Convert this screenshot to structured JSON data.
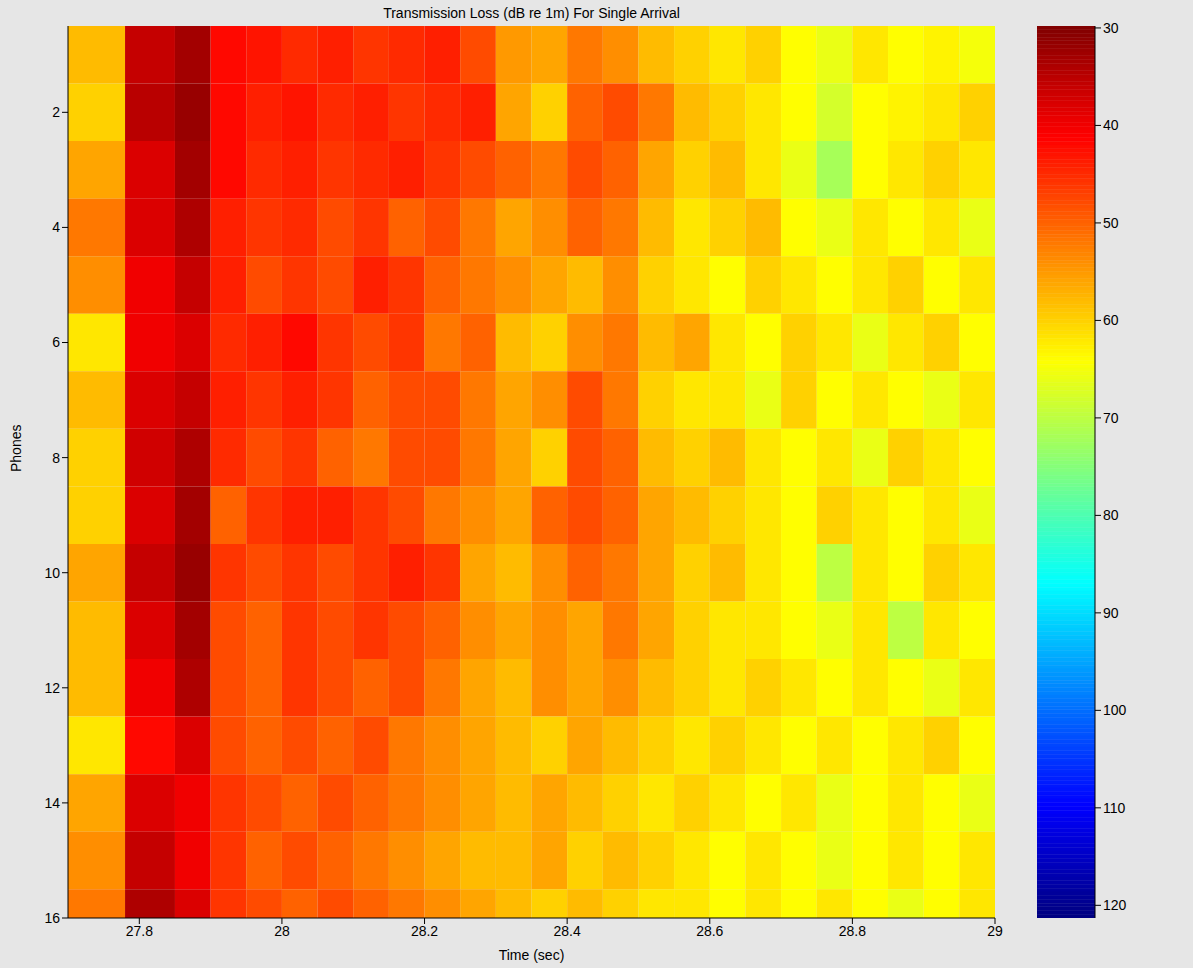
{
  "chart_data": {
    "type": "heatmap",
    "title": "Transmission Loss (dB re 1m) For Single Arrival",
    "xlabel": "Time (sec)",
    "ylabel": "Phones",
    "x_edges": [
      27.7,
      27.78,
      27.85,
      27.9,
      27.95,
      28,
      28.05,
      28.1,
      28.15,
      28.2,
      28.25,
      28.3,
      28.35,
      28.4,
      28.45,
      28.5,
      28.55,
      28.6,
      28.65,
      28.7,
      28.75,
      28.8,
      28.85,
      28.9,
      28.95,
      29
    ],
    "y": [
      1,
      2,
      3,
      4,
      5,
      6,
      7,
      8,
      9,
      10,
      11,
      12,
      13,
      14,
      15,
      16
    ],
    "cells": [
      [
        58,
        36,
        33,
        42,
        43,
        45,
        44,
        46,
        45,
        44,
        48,
        55,
        56,
        52,
        54,
        58,
        60,
        62,
        60,
        64,
        66,
        62,
        64,
        63,
        65
      ],
      [
        60,
        35,
        32,
        42,
        44,
        43,
        45,
        44,
        46,
        45,
        44,
        56,
        60,
        50,
        48,
        52,
        58,
        60,
        62,
        64,
        68,
        64,
        63,
        62,
        60
      ],
      [
        56,
        38,
        33,
        42,
        45,
        44,
        46,
        45,
        44,
        46,
        48,
        50,
        52,
        48,
        50,
        56,
        60,
        58,
        62,
        66,
        72,
        64,
        62,
        60,
        62
      ],
      [
        52,
        38,
        34,
        44,
        46,
        45,
        48,
        46,
        50,
        48,
        52,
        56,
        54,
        50,
        52,
        58,
        62,
        60,
        58,
        64,
        66,
        62,
        64,
        62,
        66
      ],
      [
        54,
        40,
        36,
        44,
        48,
        46,
        48,
        44,
        46,
        50,
        52,
        54,
        56,
        58,
        54,
        60,
        62,
        64,
        60,
        62,
        64,
        62,
        60,
        64,
        62
      ],
      [
        62,
        40,
        38,
        45,
        44,
        42,
        46,
        48,
        46,
        52,
        50,
        58,
        60,
        54,
        52,
        58,
        56,
        62,
        64,
        60,
        62,
        66,
        62,
        60,
        64
      ],
      [
        58,
        38,
        36,
        44,
        46,
        44,
        46,
        50,
        48,
        48,
        52,
        56,
        54,
        48,
        52,
        60,
        62,
        62,
        66,
        60,
        64,
        62,
        64,
        66,
        62
      ],
      [
        60,
        37,
        34,
        45,
        48,
        46,
        50,
        52,
        48,
        48,
        52,
        56,
        60,
        48,
        50,
        58,
        60,
        58,
        62,
        64,
        62,
        66,
        60,
        62,
        64
      ],
      [
        60,
        38,
        33,
        50,
        46,
        44,
        44,
        46,
        48,
        52,
        54,
        56,
        50,
        48,
        50,
        56,
        58,
        60,
        62,
        64,
        60,
        62,
        64,
        62,
        66
      ],
      [
        56,
        36,
        32,
        46,
        48,
        46,
        48,
        46,
        44,
        46,
        56,
        58,
        54,
        50,
        52,
        56,
        60,
        58,
        62,
        64,
        70,
        62,
        64,
        60,
        62
      ],
      [
        58,
        38,
        33,
        48,
        50,
        46,
        48,
        46,
        48,
        50,
        54,
        56,
        54,
        56,
        52,
        56,
        60,
        62,
        62,
        64,
        66,
        62,
        70,
        62,
        64
      ],
      [
        58,
        40,
        34,
        48,
        50,
        46,
        48,
        50,
        48,
        52,
        56,
        58,
        54,
        56,
        54,
        58,
        60,
        62,
        60,
        62,
        64,
        62,
        64,
        66,
        62
      ],
      [
        62,
        42,
        38,
        48,
        50,
        48,
        50,
        48,
        52,
        54,
        56,
        58,
        60,
        56,
        58,
        60,
        62,
        60,
        62,
        64,
        62,
        64,
        62,
        60,
        64
      ],
      [
        56,
        38,
        40,
        46,
        48,
        50,
        48,
        50,
        52,
        54,
        56,
        58,
        56,
        58,
        60,
        62,
        60,
        62,
        64,
        62,
        66,
        64,
        62,
        64,
        66
      ],
      [
        54,
        36,
        40,
        46,
        50,
        48,
        50,
        52,
        54,
        56,
        58,
        58,
        56,
        60,
        58,
        60,
        62,
        64,
        62,
        64,
        66,
        64,
        62,
        64,
        62
      ],
      [
        52,
        34,
        38,
        46,
        48,
        50,
        48,
        50,
        52,
        54,
        56,
        58,
        60,
        58,
        60,
        62,
        62,
        64,
        62,
        64,
        62,
        64,
        66,
        64,
        62
      ]
    ],
    "xlim": [
      27.7,
      29
    ],
    "xticks": [
      27.8,
      28,
      28.2,
      28.4,
      28.6,
      28.8,
      29
    ],
    "ylim": [
      0.5,
      16
    ],
    "yticks": [
      2,
      4,
      6,
      8,
      10,
      12,
      14,
      16
    ],
    "colorbar": {
      "range": [
        29.8,
        121.3
      ],
      "ticks": [
        30,
        40,
        50,
        60,
        70,
        80,
        90,
        100,
        110,
        120
      ]
    }
  }
}
